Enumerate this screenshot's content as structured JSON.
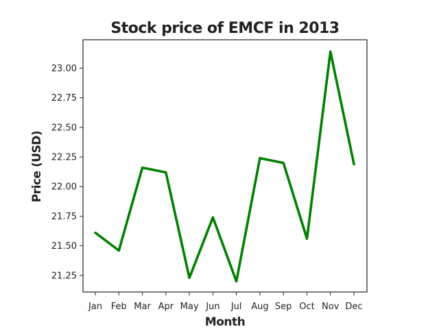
{
  "chart_data": {
    "type": "line",
    "title": "Stock price of EMCF in 2013",
    "xlabel": "Month",
    "ylabel": "Price (USD)",
    "categories": [
      "Jan",
      "Feb",
      "Mar",
      "Apr",
      "May",
      "Jun",
      "Jul",
      "Aug",
      "Sep",
      "Oct",
      "Nov",
      "Dec"
    ],
    "series": [
      {
        "values": [
          21.61,
          21.46,
          22.16,
          22.12,
          21.23,
          21.74,
          21.2,
          22.24,
          22.2,
          21.56,
          23.14,
          22.19
        ]
      }
    ],
    "yticks": [
      "21.25",
      "21.50",
      "21.75",
      "22.00",
      "22.25",
      "22.50",
      "22.75",
      "23.00"
    ],
    "ylim": [
      21.11,
      23.24
    ],
    "grid": false,
    "line_color": "#008000"
  }
}
